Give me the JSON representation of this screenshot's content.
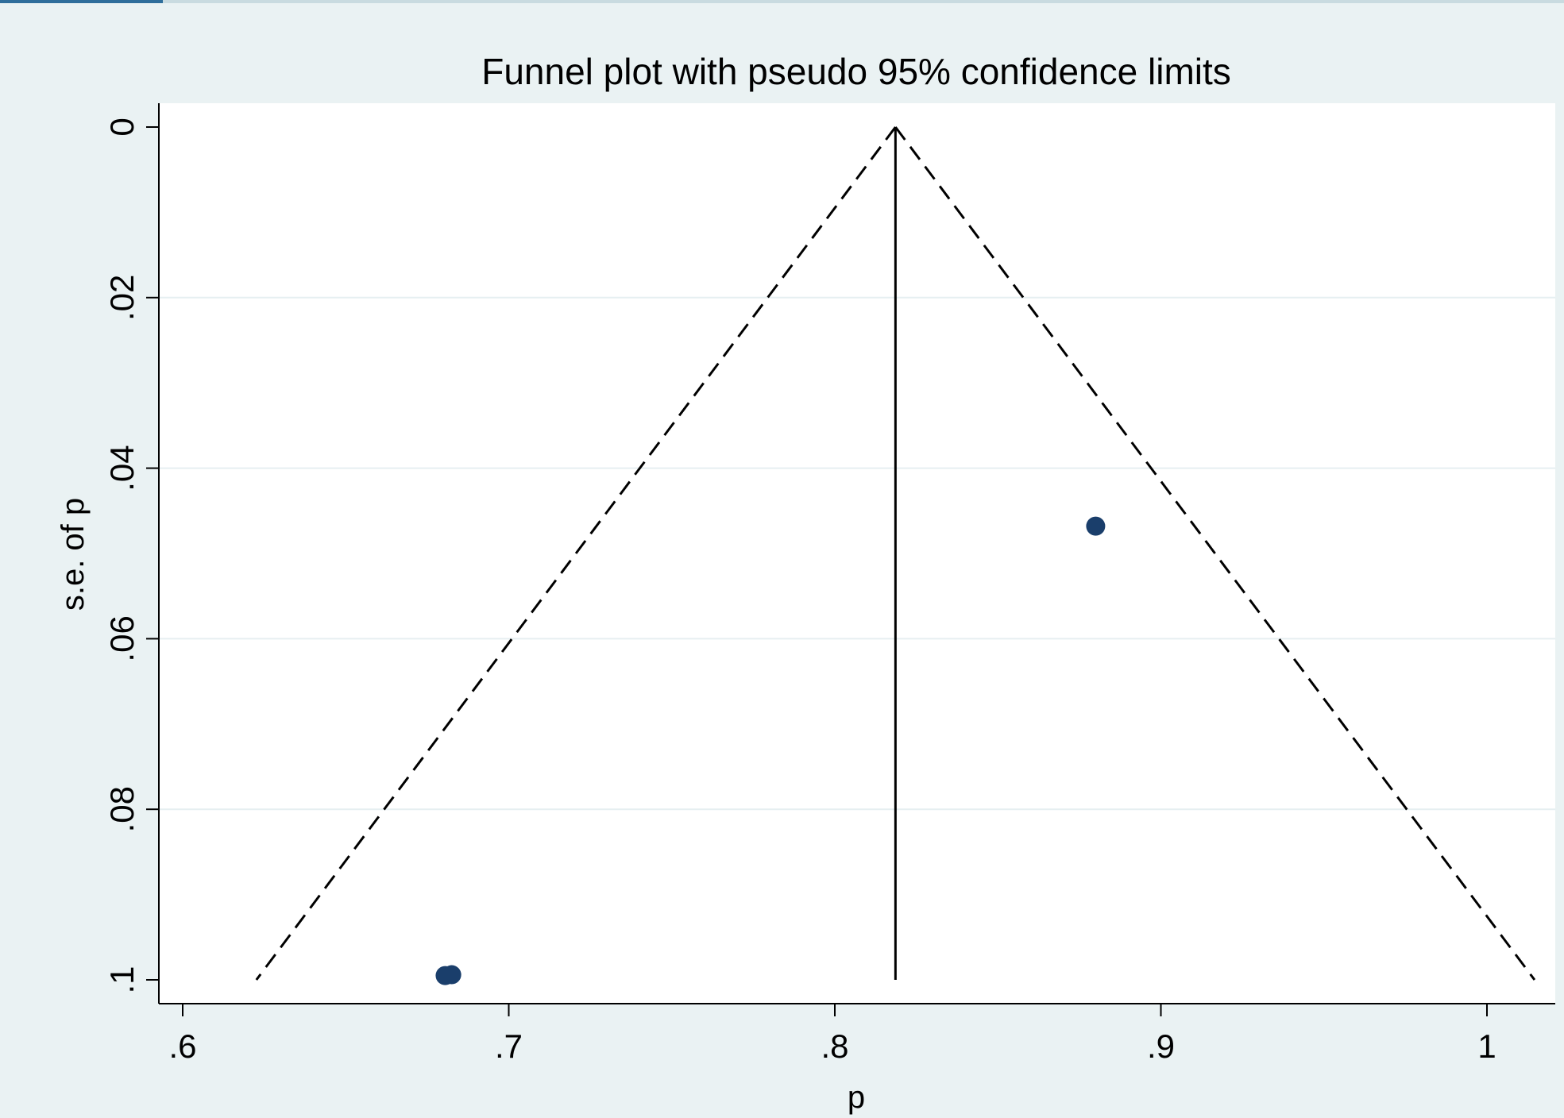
{
  "chart_data": {
    "type": "scatter",
    "title": "Funnel plot with pseudo 95% confidence limits",
    "xlabel": "p",
    "ylabel": "s.e. of p",
    "xlim": [
      0.593,
      1.022
    ],
    "ylim": [
      0,
      0.103
    ],
    "y_reversed": true,
    "x_ticks": [
      0.6,
      0.7,
      0.8,
      0.9,
      1.0
    ],
    "x_tick_labels": [
      ".6",
      ".7",
      ".8",
      ".9",
      "1"
    ],
    "y_ticks": [
      0,
      0.02,
      0.04,
      0.06,
      0.08,
      0.1
    ],
    "y_tick_labels": [
      "0",
      ".02",
      ".04",
      ".06",
      ".08",
      ".1"
    ],
    "grid": "horizontal",
    "pooled_estimate": 0.8186,
    "confidence_limits": {
      "level": "95%",
      "se_max": 0.1,
      "lower_at_se_max": 0.6226,
      "upper_at_se_max": 1.0146
    },
    "points": [
      {
        "x": 0.6805,
        "y": 0.0995
      },
      {
        "x": 0.6825,
        "y": 0.0994
      },
      {
        "x": 0.88,
        "y": 0.0468
      }
    ],
    "colors": {
      "marker": "#1a3e6b",
      "plot_bg": "#ffffff",
      "page_bg": "#eaf2f3",
      "grid": "#e6eff1"
    }
  }
}
